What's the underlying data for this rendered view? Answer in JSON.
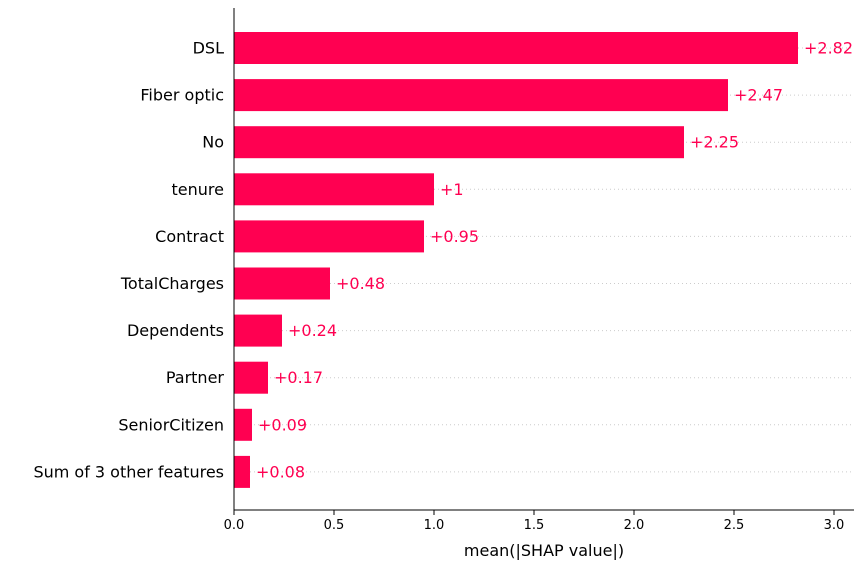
{
  "chart_data": {
    "type": "bar",
    "orientation": "horizontal",
    "categories": [
      "DSL",
      "Fiber optic",
      "No",
      "tenure",
      "Contract",
      "TotalCharges",
      "Dependents",
      "Partner",
      "SeniorCitizen",
      "Sum of 3 other features"
    ],
    "values": [
      2.82,
      2.47,
      2.25,
      1.0,
      0.95,
      0.48,
      0.24,
      0.17,
      0.09,
      0.08
    ],
    "value_labels": [
      "+2.82",
      "+2.47",
      "+2.25",
      "+1",
      "+0.95",
      "+0.48",
      "+0.24",
      "+0.17",
      "+0.09",
      "+0.08"
    ],
    "xlabel": "mean(|SHAP value|)",
    "xlim": [
      0,
      3.1
    ],
    "xticks": [
      0,
      0.5,
      1,
      1.5,
      2,
      2.5,
      3
    ],
    "xtick_labels": [
      "0.0",
      "0.5",
      "1.0",
      "1.5",
      "2.0",
      "2.5",
      "3.0"
    ],
    "grid": "dotted horizontal row guides",
    "bar_color": "#ff0051",
    "label_color": "#ff0051"
  }
}
